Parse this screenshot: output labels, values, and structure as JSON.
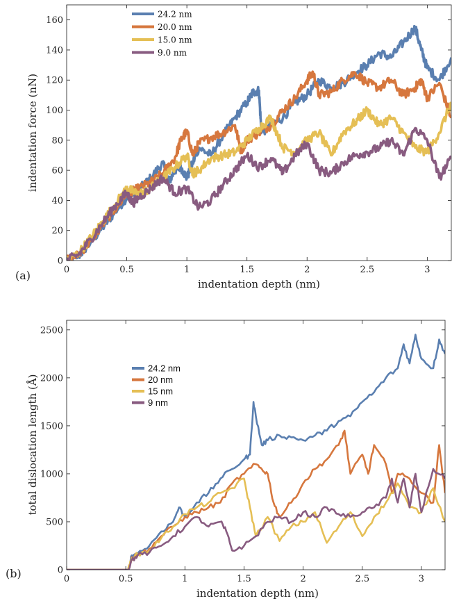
{
  "chart_data": [
    {
      "type": "line",
      "panel_label": "(a)",
      "xlabel": "indentation depth (nm)",
      "ylabel": "indentation force (nN)",
      "xlim": [
        0,
        3.2
      ],
      "ylim": [
        0,
        170
      ],
      "xticks": [
        0,
        0.5,
        1,
        1.5,
        2,
        2.5,
        3
      ],
      "xtick_labels": [
        "0",
        "0.5",
        "1",
        "1.5",
        "2",
        "2.5",
        "3"
      ],
      "yticks": [
        0,
        20,
        40,
        60,
        80,
        100,
        120,
        140,
        160
      ],
      "ytick_labels": [
        "0",
        "20",
        "40",
        "60",
        "80",
        "100",
        "120",
        "140",
        "160"
      ],
      "grid": false,
      "legend_position": "top-left",
      "noise_amplitude": 3,
      "series": [
        {
          "name": "24.2 nm",
          "color": "#5a7fb0",
          "x": [
            0,
            0.1,
            0.2,
            0.3,
            0.4,
            0.5,
            0.55,
            0.6,
            0.7,
            0.8,
            0.85,
            0.9,
            0.95,
            1.0,
            1.05,
            1.1,
            1.2,
            1.3,
            1.4,
            1.5,
            1.55,
            1.6,
            1.62,
            1.7,
            1.8,
            1.9,
            2.0,
            2.1,
            2.2,
            2.3,
            2.4,
            2.5,
            2.6,
            2.7,
            2.8,
            2.9,
            2.95,
            3.0,
            3.1,
            3.2
          ],
          "y": [
            0,
            3,
            12,
            22,
            32,
            42,
            44,
            47,
            55,
            65,
            52,
            60,
            62,
            55,
            65,
            75,
            70,
            83,
            95,
            105,
            112,
            113,
            85,
            90,
            95,
            105,
            110,
            120,
            115,
            118,
            125,
            130,
            138,
            135,
            145,
            155,
            140,
            128,
            120,
            135
          ]
        },
        {
          "name": "20.0 nm",
          "color": "#d6773e",
          "x": [
            0,
            0.1,
            0.2,
            0.3,
            0.4,
            0.5,
            0.55,
            0.6,
            0.7,
            0.8,
            0.9,
            0.95,
            1.0,
            1.05,
            1.1,
            1.2,
            1.3,
            1.4,
            1.45,
            1.5,
            1.6,
            1.7,
            1.8,
            1.9,
            2.0,
            2.05,
            2.1,
            2.2,
            2.3,
            2.4,
            2.5,
            2.6,
            2.7,
            2.8,
            2.9,
            2.95,
            3.0,
            3.1,
            3.2
          ],
          "y": [
            0,
            4,
            13,
            24,
            34,
            44,
            46,
            48,
            52,
            58,
            68,
            80,
            86,
            70,
            78,
            82,
            85,
            90,
            73,
            80,
            85,
            90,
            100,
            108,
            120,
            125,
            110,
            112,
            120,
            125,
            118,
            115,
            120,
            110,
            115,
            120,
            108,
            118,
            95
          ]
        },
        {
          "name": "15.0 nm",
          "color": "#e5bf55",
          "x": [
            0,
            0.1,
            0.2,
            0.3,
            0.4,
            0.5,
            0.55,
            0.6,
            0.7,
            0.8,
            0.9,
            1.0,
            1.05,
            1.1,
            1.2,
            1.3,
            1.4,
            1.5,
            1.6,
            1.7,
            1.8,
            1.9,
            2.0,
            2.1,
            2.2,
            2.3,
            2.4,
            2.5,
            2.6,
            2.7,
            2.8,
            2.9,
            3.0,
            3.1,
            3.2
          ],
          "y": [
            0,
            5,
            15,
            26,
            37,
            48,
            46,
            44,
            48,
            55,
            62,
            70,
            58,
            60,
            68,
            70,
            72,
            80,
            88,
            95,
            75,
            72,
            80,
            85,
            70,
            85,
            92,
            100,
            90,
            95,
            85,
            75,
            72,
            85,
            105
          ]
        },
        {
          "name": "9.0 nm",
          "color": "#885b80",
          "x": [
            0,
            0.1,
            0.2,
            0.3,
            0.4,
            0.5,
            0.55,
            0.6,
            0.7,
            0.8,
            0.9,
            1.0,
            1.1,
            1.2,
            1.3,
            1.4,
            1.5,
            1.6,
            1.7,
            1.8,
            1.9,
            2.0,
            2.1,
            2.2,
            2.3,
            2.4,
            2.5,
            2.6,
            2.7,
            2.8,
            2.9,
            3.0,
            3.1,
            3.2
          ],
          "y": [
            0,
            4,
            14,
            25,
            36,
            45,
            38,
            42,
            48,
            55,
            45,
            48,
            35,
            40,
            50,
            60,
            70,
            62,
            68,
            58,
            70,
            78,
            60,
            58,
            65,
            70,
            72,
            75,
            80,
            70,
            88,
            80,
            55,
            68
          ]
        }
      ]
    },
    {
      "type": "line",
      "panel_label": "(b)",
      "xlabel": "indentation depth (nm)",
      "ylabel": "total dislocation length (Å)",
      "xlim": [
        0,
        3.2
      ],
      "ylim": [
        0,
        2600
      ],
      "xticks": [
        0,
        0.5,
        1,
        1.5,
        2,
        2.5,
        3
      ],
      "xtick_labels": [
        "0",
        "0.5",
        "1",
        "1.5",
        "2",
        "2.5",
        "3"
      ],
      "yticks": [
        0,
        500,
        1000,
        1500,
        2000,
        2500
      ],
      "ytick_labels": [
        "0",
        "500",
        "1000",
        "1500",
        "2000",
        "2500"
      ],
      "grid": false,
      "legend_position": "upper-left",
      "noise_amplitude": 25,
      "series": [
        {
          "name": "24.2 nm",
          "color": "#5a7fb0",
          "x": [
            0,
            0.52,
            0.55,
            0.6,
            0.7,
            0.8,
            0.9,
            0.95,
            1.0,
            1.1,
            1.2,
            1.3,
            1.4,
            1.5,
            1.55,
            1.58,
            1.6,
            1.65,
            1.7,
            1.8,
            1.9,
            2.0,
            2.1,
            2.2,
            2.3,
            2.4,
            2.5,
            2.6,
            2.7,
            2.8,
            2.85,
            2.9,
            2.95,
            3.0,
            3.1,
            3.15,
            3.2
          ],
          "y": [
            0,
            0,
            150,
            170,
            250,
            400,
            500,
            650,
            550,
            700,
            800,
            950,
            1050,
            1150,
            1200,
            1750,
            1600,
            1300,
            1350,
            1400,
            1380,
            1350,
            1400,
            1450,
            1550,
            1600,
            1750,
            1850,
            2000,
            2100,
            2350,
            2150,
            2450,
            2200,
            2100,
            2400,
            2250
          ]
        },
        {
          "name": "20 nm",
          "color": "#d6773e",
          "x": [
            0,
            0.52,
            0.55,
            0.6,
            0.7,
            0.8,
            0.9,
            1.0,
            1.1,
            1.2,
            1.3,
            1.4,
            1.5,
            1.6,
            1.65,
            1.7,
            1.75,
            1.8,
            1.9,
            2.0,
            2.1,
            2.2,
            2.3,
            2.35,
            2.4,
            2.5,
            2.55,
            2.6,
            2.7,
            2.75,
            2.8,
            2.9,
            3.0,
            3.1,
            3.15,
            3.2
          ],
          "y": [
            0,
            0,
            130,
            150,
            220,
            350,
            450,
            550,
            600,
            650,
            700,
            900,
            1000,
            1100,
            1050,
            1000,
            700,
            550,
            700,
            900,
            1050,
            1150,
            1300,
            1450,
            1000,
            1200,
            1000,
            1300,
            1100,
            800,
            1000,
            950,
            800,
            700,
            1300,
            800
          ]
        },
        {
          "name": "15 nm",
          "color": "#e5bf55",
          "x": [
            0,
            0.52,
            0.55,
            0.6,
            0.7,
            0.8,
            0.9,
            1.0,
            1.1,
            1.2,
            1.3,
            1.4,
            1.5,
            1.55,
            1.6,
            1.7,
            1.8,
            1.9,
            2.0,
            2.1,
            2.2,
            2.3,
            2.4,
            2.5,
            2.6,
            2.7,
            2.8,
            2.9,
            3.0,
            3.1,
            3.2
          ],
          "y": [
            0,
            0,
            120,
            160,
            200,
            330,
            450,
            580,
            650,
            700,
            800,
            850,
            950,
            650,
            350,
            550,
            300,
            450,
            500,
            600,
            280,
            450,
            600,
            350,
            550,
            700,
            900,
            650,
            600,
            850,
            500
          ]
        },
        {
          "name": "9 nm",
          "color": "#885b80",
          "x": [
            0,
            0.52,
            0.55,
            0.6,
            0.7,
            0.8,
            0.9,
            1.0,
            1.1,
            1.2,
            1.3,
            1.35,
            1.4,
            1.5,
            1.6,
            1.7,
            1.8,
            1.9,
            2.0,
            2.1,
            2.2,
            2.3,
            2.4,
            2.5,
            2.6,
            2.7,
            2.75,
            2.8,
            2.85,
            2.9,
            2.95,
            3.0,
            3.1,
            3.2
          ],
          "y": [
            0,
            0,
            100,
            150,
            180,
            250,
            350,
            450,
            550,
            450,
            500,
            400,
            200,
            250,
            350,
            500,
            550,
            500,
            600,
            550,
            650,
            580,
            550,
            600,
            650,
            750,
            950,
            700,
            950,
            650,
            1000,
            600,
            1050,
            950
          ]
        }
      ]
    }
  ]
}
